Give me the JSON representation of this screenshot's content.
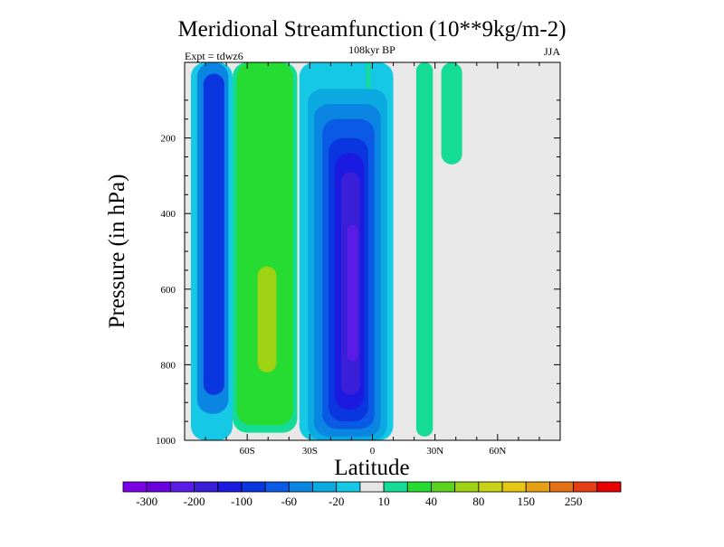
{
  "chart_data": {
    "type": "heatmap",
    "title": "Meridional Streamfunction (10**9kg/m-2)",
    "left_string": "Expt = tdwz6",
    "center_string": "108kyr BP",
    "right_string": "JJA",
    "xlabel": "Latitude",
    "ylabel": "Pressure (in hPa)",
    "xlim": [
      -90,
      90
    ],
    "ylim": [
      1000,
      0
    ],
    "x_ticks": [
      -60,
      -30,
      0,
      30,
      60
    ],
    "x_tick_labels": [
      "60S",
      "30S",
      "0",
      "30N",
      "60N"
    ],
    "y_ticks": [
      200,
      400,
      600,
      800,
      1000
    ],
    "y_tick_labels": [
      "200",
      "400",
      "600",
      "800",
      "1000"
    ],
    "background_color": "#e8e8e8",
    "levels": [
      -300,
      -250,
      -200,
      -150,
      -100,
      -80,
      -60,
      -40,
      -20,
      -10,
      10,
      20,
      40,
      60,
      80,
      100,
      150,
      200,
      250,
      300
    ],
    "colorbar_colors": [
      "#7a00e6",
      "#6a00e0",
      "#5a1ce6",
      "#3a1ed8",
      "#1a1ae0",
      "#0a36e0",
      "#0a5ae6",
      "#0a86e2",
      "#0aaae0",
      "#14c8e6",
      "#e6e6e6",
      "#14dc96",
      "#26dc32",
      "#5ad21e",
      "#a0d214",
      "#c8d214",
      "#e6c814",
      "#e6a014",
      "#e67014",
      "#e63c14",
      "#e60000"
    ],
    "colorbar_labels": [
      "-300",
      "-200",
      "-100",
      "-60",
      "-20",
      "10",
      "40",
      "80",
      "150",
      "250"
    ],
    "colorbar_label_slots": [
      1,
      3,
      5,
      7,
      9,
      11,
      13,
      15,
      17,
      19
    ],
    "cells": [
      {
        "name": "cell-antarctic-outer",
        "lat_min": -87,
        "lat_max": -67,
        "p_top": 0,
        "p_bottom": 1000,
        "value": -20,
        "color": "#14c8e6"
      },
      {
        "name": "cell-antarctic-middle",
        "lat_min": -84,
        "lat_max": -69,
        "p_top": 0,
        "p_bottom": 930,
        "value": -60,
        "color": "#0a86e2"
      },
      {
        "name": "cell-antarctic-core",
        "lat_min": -81,
        "lat_max": -71,
        "p_top": 30,
        "p_bottom": 880,
        "value": -100,
        "color": "#0a36e0"
      },
      {
        "name": "cell-ferrel-outer",
        "lat_min": -67,
        "lat_max": -36,
        "p_top": 0,
        "p_bottom": 980,
        "value": 10,
        "color": "#14dc96"
      },
      {
        "name": "cell-ferrel-middle",
        "lat_min": -65,
        "lat_max": -38,
        "p_top": 0,
        "p_bottom": 960,
        "value": 20,
        "color": "#26dc32"
      },
      {
        "name": "cell-ferrel-core",
        "lat_min": -55,
        "lat_max": -46,
        "p_top": 540,
        "p_bottom": 820,
        "value": 60,
        "color": "#a0d214"
      },
      {
        "name": "cell-hadley-south-1",
        "lat_min": -35,
        "lat_max": 10,
        "p_top": 0,
        "p_bottom": 1000,
        "value": -20,
        "color": "#14c8e6"
      },
      {
        "name": "cell-hadley-south-2",
        "lat_min": -31,
        "lat_max": 7,
        "p_top": 70,
        "p_bottom": 1000,
        "value": -40,
        "color": "#0aaae0"
      },
      {
        "name": "cell-hadley-south-3",
        "lat_min": -28,
        "lat_max": 4,
        "p_top": 110,
        "p_bottom": 990,
        "value": -60,
        "color": "#0a86e2"
      },
      {
        "name": "cell-hadley-south-4",
        "lat_min": -24,
        "lat_max": 1,
        "p_top": 150,
        "p_bottom": 970,
        "value": -80,
        "color": "#0a5ae6"
      },
      {
        "name": "cell-hadley-south-5",
        "lat_min": -21,
        "lat_max": -2,
        "p_top": 200,
        "p_bottom": 950,
        "value": -100,
        "color": "#0a36e0"
      },
      {
        "name": "cell-hadley-south-6",
        "lat_min": -18,
        "lat_max": -4,
        "p_top": 240,
        "p_bottom": 920,
        "value": -150,
        "color": "#1a1ae0"
      },
      {
        "name": "cell-hadley-south-7",
        "lat_min": -15,
        "lat_max": -6,
        "p_top": 290,
        "p_bottom": 880,
        "value": -200,
        "color": "#3a1ed8"
      },
      {
        "name": "cell-hadley-south-core",
        "lat_min": -12,
        "lat_max": -7,
        "p_top": 430,
        "p_bottom": 790,
        "value": -250,
        "color": "#5a1ce6"
      },
      {
        "name": "cell-hadley-north-outer",
        "lat_min": 21,
        "lat_max": 29,
        "p_top": 0,
        "p_bottom": 990,
        "value": 10,
        "color": "#14dc96"
      },
      {
        "name": "cell-tropical-top",
        "lat_min": -3,
        "lat_max": -1,
        "p_top": 0,
        "p_bottom": 70,
        "value": 10,
        "color": "#14dc96"
      },
      {
        "name": "cell-northern-midlatitude",
        "lat_min": 33,
        "lat_max": 43,
        "p_top": 0,
        "p_bottom": 270,
        "value": 10,
        "color": "#14dc96"
      }
    ],
    "grid": false
  }
}
